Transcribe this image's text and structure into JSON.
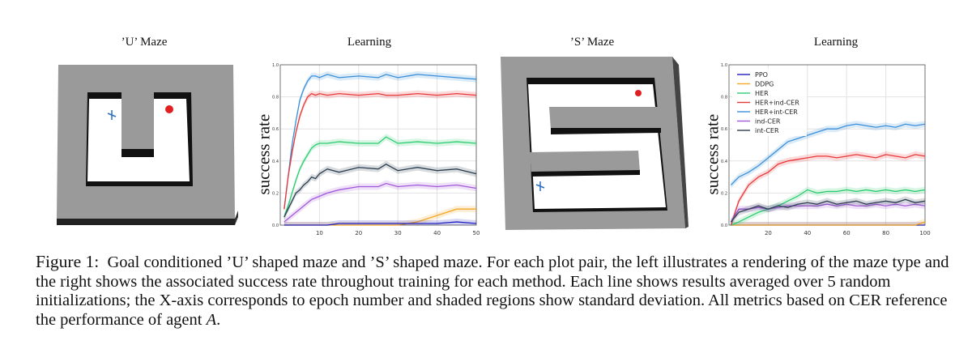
{
  "titles": {
    "u_maze": "’U’ Maze",
    "u_learning": "Learning",
    "s_maze": "’S’ Maze",
    "s_learning": "Learning"
  },
  "ylabel": "success rate",
  "caption": {
    "figure_label": "Figure 1:",
    "text_before_agent": "Goal conditioned ’U’ shaped maze and ’S’ shaped maze. For each plot pair, the left illustrates a rendering of the maze type and the right shows the associated success rate throughout training for each method. Each line shows results averaged over 5 random initializations; the X-axis corresponds to epoch number and shaded regions show standard deviation. All metrics based on CER reference the performance of agent",
    "agent": "A",
    "text_after_agent": "."
  },
  "colors": {
    "PPO": "#1f1fbf",
    "DDPG": "#f5a623",
    "HER": "#2ecc71",
    "HER+ind-CER": "#e8393a",
    "HER+int-CER": "#3a8fd9",
    "ind-CER": "#a259d9",
    "int-CER": "#2c3e50",
    "maze_wall": "#9a9a9a",
    "maze_floor": "#ffffff",
    "goal": "#e02020",
    "agent": "#2a6fbf"
  },
  "chart_data": [
    {
      "type": "line",
      "panel": "U",
      "title": "Learning",
      "ylabel": "success rate",
      "xlim": [
        0,
        50
      ],
      "ylim": [
        0,
        1.0
      ],
      "xticks": [
        10,
        20,
        30,
        40,
        50
      ],
      "yticks": [
        0.0,
        0.2,
        0.4,
        0.6,
        0.8,
        1.0
      ],
      "grid": true,
      "legend": "none",
      "x": [
        1,
        2,
        3,
        4,
        5,
        6,
        7,
        8,
        9,
        10,
        12,
        15,
        20,
        25,
        27,
        30,
        35,
        40,
        45,
        50
      ],
      "series": [
        {
          "name": "HER+int-CER",
          "values": [
            0.1,
            0.3,
            0.5,
            0.65,
            0.78,
            0.85,
            0.9,
            0.93,
            0.93,
            0.92,
            0.94,
            0.92,
            0.93,
            0.92,
            0.94,
            0.92,
            0.94,
            0.93,
            0.92,
            0.91
          ]
        },
        {
          "name": "HER+ind-CER",
          "values": [
            0.1,
            0.3,
            0.45,
            0.58,
            0.68,
            0.75,
            0.8,
            0.82,
            0.81,
            0.82,
            0.81,
            0.82,
            0.81,
            0.82,
            0.81,
            0.81,
            0.82,
            0.81,
            0.82,
            0.81
          ]
        },
        {
          "name": "HER",
          "values": [
            0.05,
            0.12,
            0.2,
            0.28,
            0.35,
            0.4,
            0.44,
            0.48,
            0.5,
            0.51,
            0.51,
            0.52,
            0.51,
            0.51,
            0.55,
            0.51,
            0.52,
            0.51,
            0.52,
            0.51
          ]
        },
        {
          "name": "int-CER",
          "values": [
            0.05,
            0.1,
            0.15,
            0.2,
            0.22,
            0.25,
            0.27,
            0.3,
            0.29,
            0.32,
            0.35,
            0.33,
            0.36,
            0.35,
            0.38,
            0.34,
            0.36,
            0.34,
            0.35,
            0.32
          ]
        },
        {
          "name": "ind-CER",
          "values": [
            0.02,
            0.04,
            0.06,
            0.08,
            0.1,
            0.12,
            0.14,
            0.16,
            0.17,
            0.18,
            0.2,
            0.22,
            0.24,
            0.24,
            0.26,
            0.24,
            0.25,
            0.24,
            0.25,
            0.23
          ]
        },
        {
          "name": "DDPG",
          "values": [
            0,
            0,
            0,
            0,
            0,
            0,
            0,
            0,
            0,
            0,
            0,
            0,
            0,
            0,
            0,
            0.0,
            0.02,
            0.06,
            0.1,
            0.1
          ]
        },
        {
          "name": "PPO",
          "values": [
            0,
            0,
            0,
            0,
            0,
            0,
            0,
            0,
            0,
            0,
            0,
            0.01,
            0.01,
            0.01,
            0.01,
            0.01,
            0.01,
            0.01,
            0.02,
            0.01
          ]
        }
      ]
    },
    {
      "type": "line",
      "panel": "S",
      "title": "Learning",
      "ylabel": "success rate",
      "xlim": [
        0,
        100
      ],
      "ylim": [
        0,
        1.0
      ],
      "xticks": [
        20,
        40,
        60,
        80,
        100
      ],
      "yticks": [
        0.0,
        0.2,
        0.4,
        0.6,
        0.8,
        1.0
      ],
      "grid": true,
      "legend": "top-left",
      "legend_entries": [
        "PPO",
        "DDPG",
        "HER",
        "HER+ind-CER",
        "HER+int-CER",
        "ind-CER",
        "int-CER"
      ],
      "x": [
        1,
        5,
        10,
        15,
        20,
        25,
        30,
        35,
        40,
        45,
        50,
        55,
        60,
        65,
        70,
        75,
        80,
        85,
        90,
        95,
        100
      ],
      "series": [
        {
          "name": "PPO",
          "values": [
            0,
            0,
            0,
            0,
            0,
            0,
            0,
            0,
            0,
            0,
            0,
            0,
            0,
            0,
            0,
            0,
            0,
            0,
            0,
            0,
            0
          ]
        },
        {
          "name": "DDPG",
          "values": [
            0,
            0,
            0,
            0,
            0,
            0,
            0,
            0,
            0,
            0,
            0,
            0,
            0,
            0,
            0,
            0,
            0,
            0,
            0,
            0,
            0.02
          ]
        },
        {
          "name": "HER",
          "values": [
            0,
            0.02,
            0.05,
            0.08,
            0.1,
            0.12,
            0.15,
            0.18,
            0.22,
            0.2,
            0.21,
            0.21,
            0.22,
            0.21,
            0.22,
            0.21,
            0.22,
            0.21,
            0.22,
            0.21,
            0.22
          ]
        },
        {
          "name": "HER+ind-CER",
          "values": [
            0,
            0.15,
            0.25,
            0.3,
            0.33,
            0.38,
            0.4,
            0.41,
            0.42,
            0.43,
            0.43,
            0.42,
            0.43,
            0.44,
            0.43,
            0.42,
            0.44,
            0.43,
            0.42,
            0.44,
            0.43
          ]
        },
        {
          "name": "HER+int-CER",
          "values": [
            0.25,
            0.3,
            0.33,
            0.37,
            0.42,
            0.47,
            0.52,
            0.54,
            0.56,
            0.58,
            0.6,
            0.6,
            0.62,
            0.63,
            0.62,
            0.61,
            0.62,
            0.61,
            0.63,
            0.62,
            0.63
          ]
        },
        {
          "name": "ind-CER",
          "values": [
            0.02,
            0.1,
            0.1,
            0.11,
            0.1,
            0.11,
            0.12,
            0.12,
            0.12,
            0.12,
            0.13,
            0.12,
            0.13,
            0.12,
            0.12,
            0.13,
            0.12,
            0.13,
            0.12,
            0.13,
            0.12
          ]
        },
        {
          "name": "int-CER",
          "values": [
            0.02,
            0.08,
            0.1,
            0.12,
            0.1,
            0.12,
            0.11,
            0.13,
            0.14,
            0.13,
            0.15,
            0.13,
            0.14,
            0.15,
            0.13,
            0.14,
            0.15,
            0.14,
            0.16,
            0.14,
            0.15
          ]
        }
      ]
    }
  ]
}
